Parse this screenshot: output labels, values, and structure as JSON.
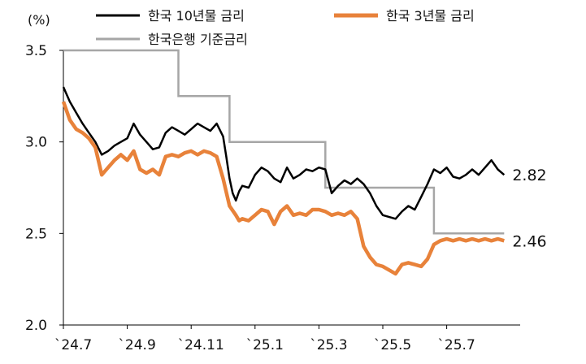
{
  "chart_data": {
    "type": "line",
    "unit_label": "(%)",
    "ylim": [
      2.0,
      3.5
    ],
    "y_ticks": [
      "3.5",
      "3.0",
      "2.5",
      "2.0"
    ],
    "x_domain": [
      0,
      14.3
    ],
    "x_ticks": [
      {
        "label": "`24.7",
        "x": 0
      },
      {
        "label": "`24.9",
        "x": 2
      },
      {
        "label": "`24.11",
        "x": 4
      },
      {
        "label": "`25.1",
        "x": 6
      },
      {
        "label": "`25.3",
        "x": 8
      },
      {
        "label": "`25.5",
        "x": 10
      },
      {
        "label": "`25.7",
        "x": 12
      }
    ],
    "series": [
      {
        "name": "한국 10년물 금리",
        "color": "#000000",
        "points": [
          [
            0.0,
            3.3
          ],
          [
            0.2,
            3.22
          ],
          [
            0.4,
            3.16
          ],
          [
            0.6,
            3.1
          ],
          [
            0.8,
            3.05
          ],
          [
            1.0,
            3.0
          ],
          [
            1.2,
            2.93
          ],
          [
            1.4,
            2.95
          ],
          [
            1.6,
            2.98
          ],
          [
            1.8,
            3.0
          ],
          [
            2.0,
            3.02
          ],
          [
            2.2,
            3.1
          ],
          [
            2.4,
            3.04
          ],
          [
            2.6,
            3.0
          ],
          [
            2.8,
            2.96
          ],
          [
            3.0,
            2.97
          ],
          [
            3.2,
            3.05
          ],
          [
            3.4,
            3.08
          ],
          [
            3.6,
            3.06
          ],
          [
            3.8,
            3.04
          ],
          [
            4.0,
            3.07
          ],
          [
            4.2,
            3.1
          ],
          [
            4.4,
            3.08
          ],
          [
            4.6,
            3.06
          ],
          [
            4.8,
            3.1
          ],
          [
            5.0,
            3.03
          ],
          [
            5.1,
            2.92
          ],
          [
            5.2,
            2.8
          ],
          [
            5.3,
            2.72
          ],
          [
            5.4,
            2.68
          ],
          [
            5.5,
            2.73
          ],
          [
            5.6,
            2.76
          ],
          [
            5.8,
            2.75
          ],
          [
            6.0,
            2.82
          ],
          [
            6.2,
            2.86
          ],
          [
            6.4,
            2.84
          ],
          [
            6.6,
            2.8
          ],
          [
            6.8,
            2.78
          ],
          [
            7.0,
            2.86
          ],
          [
            7.2,
            2.8
          ],
          [
            7.4,
            2.82
          ],
          [
            7.6,
            2.85
          ],
          [
            7.8,
            2.84
          ],
          [
            8.0,
            2.86
          ],
          [
            8.2,
            2.85
          ],
          [
            8.4,
            2.72
          ],
          [
            8.6,
            2.76
          ],
          [
            8.8,
            2.79
          ],
          [
            9.0,
            2.77
          ],
          [
            9.2,
            2.8
          ],
          [
            9.4,
            2.77
          ],
          [
            9.6,
            2.72
          ],
          [
            9.8,
            2.65
          ],
          [
            10.0,
            2.6
          ],
          [
            10.2,
            2.59
          ],
          [
            10.4,
            2.58
          ],
          [
            10.6,
            2.62
          ],
          [
            10.8,
            2.65
          ],
          [
            11.0,
            2.63
          ],
          [
            11.2,
            2.7
          ],
          [
            11.4,
            2.77
          ],
          [
            11.6,
            2.85
          ],
          [
            11.8,
            2.83
          ],
          [
            12.0,
            2.86
          ],
          [
            12.2,
            2.81
          ],
          [
            12.4,
            2.8
          ],
          [
            12.6,
            2.82
          ],
          [
            12.8,
            2.85
          ],
          [
            13.0,
            2.82
          ],
          [
            13.2,
            2.86
          ],
          [
            13.4,
            2.9
          ],
          [
            13.6,
            2.85
          ],
          [
            13.8,
            2.82
          ]
        ],
        "end_label": "2.82"
      },
      {
        "name": "한국 3년물 금리",
        "color": "#E8823A",
        "points": [
          [
            0.0,
            3.22
          ],
          [
            0.2,
            3.12
          ],
          [
            0.4,
            3.07
          ],
          [
            0.6,
            3.05
          ],
          [
            0.8,
            3.02
          ],
          [
            1.0,
            2.97
          ],
          [
            1.2,
            2.82
          ],
          [
            1.4,
            2.86
          ],
          [
            1.6,
            2.9
          ],
          [
            1.8,
            2.93
          ],
          [
            2.0,
            2.9
          ],
          [
            2.2,
            2.95
          ],
          [
            2.4,
            2.85
          ],
          [
            2.6,
            2.83
          ],
          [
            2.8,
            2.85
          ],
          [
            3.0,
            2.82
          ],
          [
            3.2,
            2.92
          ],
          [
            3.4,
            2.93
          ],
          [
            3.6,
            2.92
          ],
          [
            3.8,
            2.94
          ],
          [
            4.0,
            2.95
          ],
          [
            4.2,
            2.93
          ],
          [
            4.4,
            2.95
          ],
          [
            4.6,
            2.94
          ],
          [
            4.8,
            2.92
          ],
          [
            5.0,
            2.8
          ],
          [
            5.2,
            2.65
          ],
          [
            5.4,
            2.6
          ],
          [
            5.5,
            2.57
          ],
          [
            5.6,
            2.58
          ],
          [
            5.8,
            2.57
          ],
          [
            6.0,
            2.6
          ],
          [
            6.2,
            2.63
          ],
          [
            6.4,
            2.62
          ],
          [
            6.6,
            2.55
          ],
          [
            6.8,
            2.62
          ],
          [
            7.0,
            2.65
          ],
          [
            7.2,
            2.6
          ],
          [
            7.4,
            2.61
          ],
          [
            7.6,
            2.6
          ],
          [
            7.8,
            2.63
          ],
          [
            8.0,
            2.63
          ],
          [
            8.2,
            2.62
          ],
          [
            8.4,
            2.6
          ],
          [
            8.6,
            2.61
          ],
          [
            8.8,
            2.6
          ],
          [
            9.0,
            2.62
          ],
          [
            9.2,
            2.58
          ],
          [
            9.4,
            2.43
          ],
          [
            9.6,
            2.37
          ],
          [
            9.8,
            2.33
          ],
          [
            10.0,
            2.32
          ],
          [
            10.2,
            2.3
          ],
          [
            10.4,
            2.28
          ],
          [
            10.6,
            2.33
          ],
          [
            10.8,
            2.34
          ],
          [
            11.0,
            2.33
          ],
          [
            11.2,
            2.32
          ],
          [
            11.4,
            2.36
          ],
          [
            11.6,
            2.44
          ],
          [
            11.8,
            2.46
          ],
          [
            12.0,
            2.47
          ],
          [
            12.2,
            2.46
          ],
          [
            12.4,
            2.47
          ],
          [
            12.6,
            2.46
          ],
          [
            12.8,
            2.47
          ],
          [
            13.0,
            2.46
          ],
          [
            13.2,
            2.47
          ],
          [
            13.4,
            2.46
          ],
          [
            13.6,
            2.47
          ],
          [
            13.8,
            2.46
          ]
        ],
        "end_label": "2.46"
      },
      {
        "name": "한국은행 기준금리",
        "color": "#A6A6A6",
        "step": true,
        "points": [
          [
            0.0,
            3.5
          ],
          [
            3.6,
            3.5
          ],
          [
            3.6,
            3.25
          ],
          [
            5.2,
            3.25
          ],
          [
            5.2,
            3.0
          ],
          [
            8.2,
            3.0
          ],
          [
            8.2,
            2.75
          ],
          [
            11.6,
            2.75
          ],
          [
            11.6,
            2.5
          ],
          [
            13.8,
            2.5
          ]
        ]
      }
    ]
  }
}
